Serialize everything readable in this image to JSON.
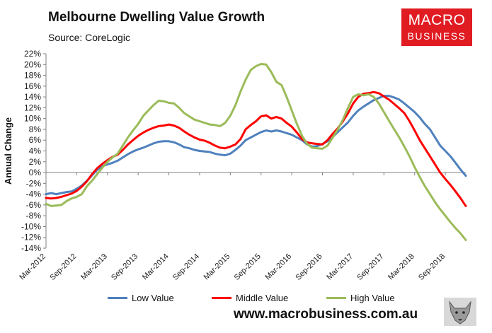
{
  "header": {
    "title": "Melbourne Dwelling Value Growth",
    "source": "Source: CoreLogic"
  },
  "logo": {
    "line1": "MACRO",
    "line2": "BUSINESS"
  },
  "footer": {
    "website": "www.macrobusiness.com.au"
  },
  "colors": {
    "low": "#4f81bd",
    "middle": "#ff0000",
    "high": "#9bbb59",
    "logo_bg": "#e01b22"
  },
  "chart_data": {
    "type": "line",
    "title": "Melbourne Dwelling Value Growth",
    "xlabel": "",
    "ylabel": "Annual Change",
    "ylim": [
      -14,
      22
    ],
    "yticks": [
      "-14%",
      "-12%",
      "-10%",
      "-8%",
      "-6%",
      "-4%",
      "-2%",
      "0%",
      "2%",
      "4%",
      "6%",
      "8%",
      "10%",
      "12%",
      "14%",
      "16%",
      "18%",
      "20%",
      "22%"
    ],
    "xticks": [
      "Mar-2012",
      "Sep-2012",
      "Mar-2013",
      "Sep-2013",
      "Mar-2014",
      "Sep-2014",
      "Mar-2015",
      "Sep-2015",
      "Mar-2016",
      "Sep-2016",
      "Mar-2017",
      "Sep-2017",
      "Mar-2018",
      "Sep-2018"
    ],
    "x_start": "Mar-2012",
    "x_end": "Jan-2019",
    "grid": false,
    "legend_position": "bottom",
    "series": [
      {
        "name": "Low Value",
        "color": "#4f81bd",
        "values": [
          -4.0,
          -3.8,
          -4.0,
          -3.8,
          -3.6,
          -3.5,
          -3.0,
          -2.4,
          -1.5,
          -0.5,
          0.5,
          1.2,
          1.5,
          1.8,
          2.2,
          2.8,
          3.4,
          3.9,
          4.3,
          4.6,
          5.0,
          5.4,
          5.7,
          5.8,
          5.8,
          5.6,
          5.2,
          4.7,
          4.5,
          4.2,
          4.0,
          3.9,
          3.8,
          3.5,
          3.3,
          3.2,
          3.5,
          4.2,
          5.0,
          6.0,
          6.5,
          7.0,
          7.5,
          7.8,
          7.6,
          7.8,
          7.6,
          7.3,
          7.0,
          6.5,
          6.0,
          5.2,
          4.8,
          4.9,
          5.3,
          5.8,
          6.6,
          7.5,
          8.4,
          9.3,
          10.5,
          11.5,
          12.2,
          12.8,
          13.4,
          13.8,
          14.2,
          14.2,
          13.9,
          13.5,
          12.8,
          12.0,
          11.2,
          10.2,
          9.0,
          8.0,
          6.5,
          5.0,
          4.0,
          3.0,
          1.8,
          0.5,
          -0.6
        ]
      },
      {
        "name": "Middle Value",
        "color": "#ff0000",
        "values": [
          -4.7,
          -4.8,
          -4.7,
          -4.5,
          -4.2,
          -3.9,
          -3.4,
          -2.6,
          -1.6,
          -0.3,
          0.8,
          1.6,
          2.3,
          2.9,
          3.3,
          4.2,
          5.2,
          6.0,
          6.8,
          7.4,
          7.9,
          8.3,
          8.6,
          8.7,
          8.9,
          8.7,
          8.3,
          7.6,
          7.0,
          6.5,
          6.1,
          5.9,
          5.5,
          5.0,
          4.6,
          4.5,
          4.8,
          5.2,
          6.2,
          8.0,
          8.8,
          9.5,
          10.4,
          10.6,
          10.0,
          10.3,
          10.0,
          9.2,
          8.5,
          7.4,
          6.2,
          5.6,
          5.4,
          5.3,
          5.2,
          6.0,
          7.2,
          8.2,
          9.5,
          11.0,
          12.8,
          14.0,
          14.6,
          14.7,
          14.9,
          14.7,
          14.1,
          13.5,
          12.7,
          11.9,
          11.0,
          9.5,
          7.8,
          6.0,
          4.5,
          3.0,
          1.5,
          0.0,
          -1.2,
          -2.3,
          -3.5,
          -4.8,
          -6.2
        ]
      },
      {
        "name": "High Value",
        "color": "#9bbb59",
        "values": [
          -5.8,
          -6.2,
          -6.1,
          -6.0,
          -5.3,
          -4.8,
          -4.5,
          -4.0,
          -2.5,
          -1.5,
          -0.3,
          0.9,
          2.0,
          2.8,
          3.5,
          5.0,
          6.5,
          7.8,
          9.0,
          10.5,
          11.5,
          12.5,
          13.3,
          13.2,
          12.9,
          12.8,
          12.0,
          11.0,
          10.4,
          9.8,
          9.5,
          9.2,
          8.9,
          8.8,
          8.6,
          9.2,
          10.5,
          12.5,
          15.0,
          17.2,
          19.0,
          19.7,
          20.1,
          20.0,
          18.6,
          16.8,
          16.2,
          14.0,
          11.5,
          9.0,
          6.8,
          5.3,
          4.6,
          4.5,
          4.4,
          5.0,
          6.5,
          8.0,
          9.8,
          12.0,
          14.0,
          14.5,
          14.3,
          14.5,
          14.0,
          12.8,
          11.2,
          9.6,
          8.0,
          6.5,
          4.8,
          3.0,
          1.0,
          -0.8,
          -2.5,
          -4.0,
          -5.5,
          -6.8,
          -8.0,
          -9.2,
          -10.3,
          -11.3,
          -12.5
        ]
      }
    ]
  }
}
